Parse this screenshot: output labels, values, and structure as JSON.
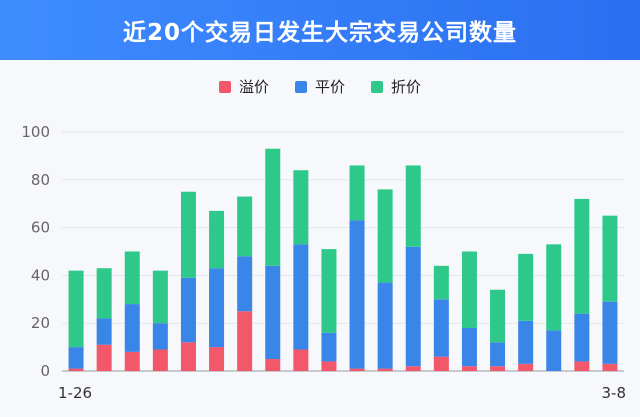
{
  "header": {
    "title": "近20个交易日发生大宗交易公司数量"
  },
  "colors": {
    "header_bg": "#3f8cff",
    "premium": "#f2576a",
    "par": "#3a86e8",
    "discount": "#2ec98a"
  },
  "chart_data": {
    "type": "bar",
    "stacked": true,
    "title": "近20个交易日发生大宗交易公司数量",
    "categories": [
      "1-26",
      "",
      "",
      "",
      "",
      "",
      "",
      "",
      "",
      "",
      "",
      "",
      "",
      "",
      "",
      "",
      "",
      "",
      "",
      "3-8"
    ],
    "x_tick_labels": {
      "first": "1-26",
      "last": "3-8"
    },
    "ylim": [
      0,
      100
    ],
    "yticks": [
      0,
      20,
      40,
      60,
      80,
      100
    ],
    "grid": true,
    "legend_position": "top",
    "series": [
      {
        "name": "溢价",
        "color": "#f2576a",
        "values": [
          1,
          11,
          8,
          9,
          12,
          10,
          25,
          5,
          9,
          4,
          1,
          1,
          2,
          6,
          2,
          2,
          3,
          0,
          4,
          3
        ]
      },
      {
        "name": "平价",
        "color": "#3a86e8",
        "values": [
          9,
          11,
          20,
          11,
          27,
          33,
          23,
          39,
          44,
          12,
          62,
          36,
          50,
          24,
          16,
          10,
          18,
          17,
          20,
          26
        ]
      },
      {
        "name": "折价",
        "color": "#2ec98a",
        "values": [
          32,
          21,
          22,
          22,
          36,
          24,
          25,
          49,
          31,
          35,
          23,
          39,
          34,
          14,
          32,
          22,
          28,
          36,
          48,
          36
        ]
      }
    ]
  }
}
